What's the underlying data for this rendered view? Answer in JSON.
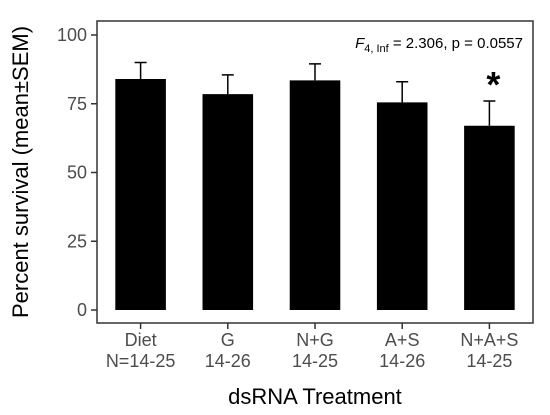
{
  "chart_data": {
    "type": "bar",
    "title": "",
    "xlabel": "dsRNA Treatment",
    "ylabel": "Percent survival (mean±SEM)",
    "ylim": [
      0,
      100
    ],
    "yticks": [
      0,
      25,
      50,
      75,
      100
    ],
    "categories": [
      "Diet",
      "G",
      "N+G",
      "A+S",
      "N+A+S"
    ],
    "category_sublabels": [
      "N=14-25",
      "14-26",
      "14-25",
      "14-26",
      "14-25"
    ],
    "values": [
      84,
      78.5,
      83.5,
      75.5,
      67
    ],
    "sem": [
      6,
      7,
      6,
      7.5,
      9
    ],
    "significance": [
      "",
      "",
      "",
      "",
      "*"
    ],
    "annotation": {
      "stat_symbol": "F",
      "stat_subscript": "4, Inf",
      "stat_rest": " = 2.306, p = 0.0557"
    },
    "bar_color": "#000000",
    "grid": false,
    "legend": "none"
  }
}
